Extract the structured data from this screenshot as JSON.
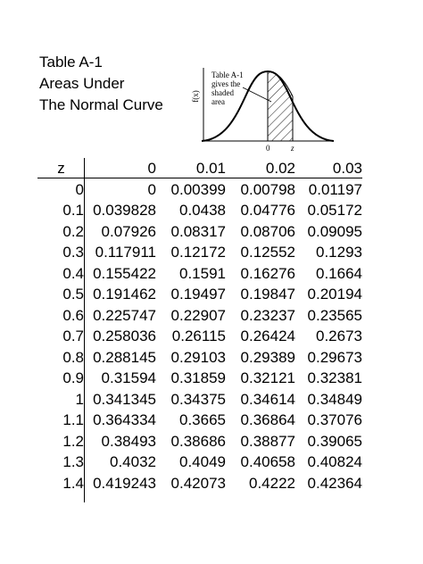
{
  "title": {
    "line1": "Table A-1",
    "line2": "Areas Under",
    "line3": "The Normal Curve"
  },
  "figure": {
    "caption_line1": "Table A-1",
    "caption_line2": "gives the",
    "caption_line3": "shaded",
    "caption_line4": "area",
    "y_axis_label": "f(x)",
    "tick_zero": "0",
    "tick_z": "z"
  },
  "table": {
    "headers": [
      "z",
      "0",
      "0.01",
      "0.02",
      "0.03"
    ],
    "rows": [
      [
        "0",
        "0",
        "0.00399",
        "0.00798",
        "0.01197"
      ],
      [
        "0.1",
        "0.039828",
        "0.0438",
        "0.04776",
        "0.05172"
      ],
      [
        "0.2",
        "0.07926",
        "0.08317",
        "0.08706",
        "0.09095"
      ],
      [
        "0.3",
        "0.117911",
        "0.12172",
        "0.12552",
        "0.1293"
      ],
      [
        "0.4",
        "0.155422",
        "0.1591",
        "0.16276",
        "0.1664"
      ],
      [
        "0.5",
        "0.191462",
        "0.19497",
        "0.19847",
        "0.20194"
      ],
      [
        "0.6",
        "0.225747",
        "0.22907",
        "0.23237",
        "0.23565"
      ],
      [
        "0.7",
        "0.258036",
        "0.26115",
        "0.26424",
        "0.2673"
      ],
      [
        "0.8",
        "0.288145",
        "0.29103",
        "0.29389",
        "0.29673"
      ],
      [
        "0.9",
        "0.31594",
        "0.31859",
        "0.32121",
        "0.32381"
      ],
      [
        "1",
        "0.341345",
        "0.34375",
        "0.34614",
        "0.34849"
      ],
      [
        "1.1",
        "0.364334",
        "0.3665",
        "0.36864",
        "0.37076"
      ],
      [
        "1.2",
        "0.38493",
        "0.38686",
        "0.38877",
        "0.39065"
      ],
      [
        "1.3",
        "0.4032",
        "0.4049",
        "0.40658",
        "0.40824"
      ],
      [
        "1.4",
        "0.419243",
        "0.42073",
        "0.4222",
        "0.42364"
      ]
    ]
  }
}
